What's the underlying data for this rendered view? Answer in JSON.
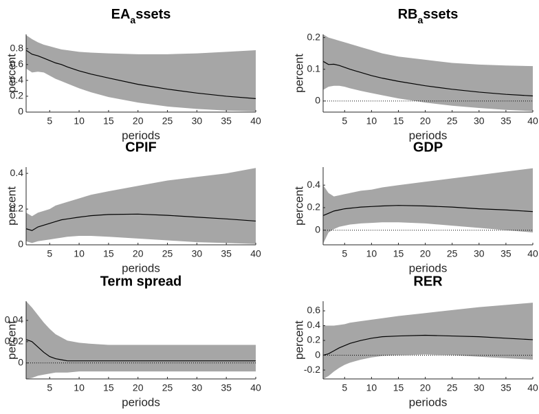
{
  "chart_data": [
    {
      "type": "band-line",
      "title": [
        "EA",
        "a",
        "ssets"
      ],
      "xlabel": "periods",
      "ylabel": "percent",
      "x": [
        1,
        2,
        3,
        4,
        5,
        6,
        7,
        8,
        10,
        12,
        15,
        20,
        25,
        30,
        35,
        40
      ],
      "values": [
        0.78,
        0.73,
        0.71,
        0.68,
        0.65,
        0.62,
        0.6,
        0.57,
        0.52,
        0.48,
        0.43,
        0.35,
        0.29,
        0.24,
        0.2,
        0.17
      ],
      "band_upper": [
        0.97,
        0.92,
        0.88,
        0.85,
        0.83,
        0.81,
        0.79,
        0.78,
        0.76,
        0.75,
        0.74,
        0.73,
        0.73,
        0.74,
        0.76,
        0.78
      ],
      "band_lower": [
        0.55,
        0.5,
        0.51,
        0.5,
        0.46,
        0.42,
        0.39,
        0.36,
        0.3,
        0.25,
        0.19,
        0.12,
        0.07,
        0.04,
        0.02,
        0.01
      ],
      "color": "#000000",
      "band_color": "#a6a6a6",
      "reference_line": 0,
      "xlim": [
        1,
        40
      ],
      "xticks": [
        5,
        10,
        15,
        20,
        25,
        30,
        35,
        40
      ],
      "ylim": [
        0,
        0.98
      ],
      "yticks": [
        0,
        0.2,
        0.4,
        0.6,
        0.8
      ]
    },
    {
      "type": "band-line",
      "title": [
        "RB",
        "a",
        "ssets"
      ],
      "xlabel": "periods",
      "ylabel": "percent",
      "x": [
        1,
        2,
        3,
        4,
        5,
        6,
        7,
        8,
        10,
        12,
        15,
        20,
        25,
        30,
        35,
        40
      ],
      "values": [
        0.125,
        0.115,
        0.116,
        0.112,
        0.106,
        0.1,
        0.095,
        0.09,
        0.08,
        0.072,
        0.062,
        0.048,
        0.037,
        0.028,
        0.021,
        0.016
      ],
      "band_upper": [
        0.21,
        0.2,
        0.195,
        0.19,
        0.185,
        0.18,
        0.175,
        0.17,
        0.16,
        0.15,
        0.14,
        0.13,
        0.12,
        0.115,
        0.112,
        0.11
      ],
      "band_lower": [
        0.035,
        0.045,
        0.048,
        0.048,
        0.045,
        0.04,
        0.036,
        0.032,
        0.025,
        0.018,
        0.008,
        -0.005,
        -0.015,
        -0.022,
        -0.028,
        -0.032
      ],
      "color": "#000000",
      "band_color": "#a6a6a6",
      "reference_line": 0,
      "xlim": [
        1,
        40
      ],
      "xticks": [
        5,
        10,
        15,
        20,
        25,
        30,
        35,
        40
      ],
      "ylim": [
        -0.035,
        0.21
      ],
      "yticks": [
        0,
        0.1,
        0.2
      ]
    },
    {
      "type": "band-line",
      "title": "CPIF",
      "xlabel": "periods",
      "ylabel": "percent",
      "x": [
        1,
        2,
        3,
        4,
        5,
        6,
        7,
        8,
        10,
        12,
        15,
        20,
        25,
        30,
        35,
        40
      ],
      "values": [
        0.09,
        0.08,
        0.1,
        0.11,
        0.12,
        0.13,
        0.14,
        0.145,
        0.155,
        0.163,
        0.17,
        0.172,
        0.165,
        0.155,
        0.145,
        0.133
      ],
      "band_upper": [
        0.18,
        0.16,
        0.18,
        0.19,
        0.2,
        0.22,
        0.23,
        0.24,
        0.26,
        0.28,
        0.3,
        0.33,
        0.36,
        0.38,
        0.4,
        0.43
      ],
      "band_lower": [
        0.02,
        0.01,
        0.02,
        0.025,
        0.03,
        0.035,
        0.04,
        0.045,
        0.05,
        0.05,
        0.045,
        0.035,
        0.025,
        0.015,
        0.01,
        0.005
      ],
      "color": "#000000",
      "band_color": "#a6a6a6",
      "reference_line": 0,
      "xlim": [
        1,
        40
      ],
      "xticks": [
        5,
        10,
        15,
        20,
        25,
        30,
        35,
        40
      ],
      "ylim": [
        0,
        0.435
      ],
      "yticks": [
        0,
        0.2,
        0.4
      ]
    },
    {
      "type": "band-line",
      "title": "GDP",
      "xlabel": "periods",
      "ylabel": "percent",
      "x": [
        1,
        2,
        3,
        4,
        5,
        6,
        7,
        8,
        10,
        12,
        15,
        20,
        25,
        30,
        35,
        40
      ],
      "values": [
        0.13,
        0.15,
        0.17,
        0.18,
        0.19,
        0.195,
        0.2,
        0.205,
        0.21,
        0.215,
        0.22,
        0.215,
        0.205,
        0.19,
        0.18,
        0.165
      ],
      "band_upper": [
        0.4,
        0.33,
        0.3,
        0.31,
        0.32,
        0.33,
        0.34,
        0.35,
        0.36,
        0.38,
        0.4,
        0.43,
        0.46,
        0.49,
        0.52,
        0.55
      ],
      "band_lower": [
        -0.12,
        -0.02,
        0.01,
        0.03,
        0.04,
        0.05,
        0.055,
        0.06,
        0.065,
        0.07,
        0.07,
        0.06,
        0.04,
        0.02,
        0,
        -0.02
      ],
      "color": "#000000",
      "band_color": "#a6a6a6",
      "reference_line": 0,
      "xlim": [
        1,
        40
      ],
      "xticks": [
        5,
        10,
        15,
        20,
        25,
        30,
        35,
        40
      ],
      "ylim": [
        -0.13,
        0.56
      ],
      "yticks": [
        0,
        0.2,
        0.4
      ]
    },
    {
      "type": "band-line",
      "title": "Term spread",
      "xlabel": "periods",
      "ylabel": "percent",
      "x": [
        1,
        2,
        3,
        4,
        5,
        6,
        7,
        8,
        10,
        12,
        15,
        20,
        25,
        30,
        35,
        40
      ],
      "values": [
        0.022,
        0.02,
        0.015,
        0.01,
        0.006,
        0.004,
        0.003,
        0.002,
        0.002,
        0.002,
        0.002,
        0.002,
        0.002,
        0.002,
        0.002,
        0.002
      ],
      "band_upper": [
        0.058,
        0.052,
        0.045,
        0.038,
        0.032,
        0.027,
        0.024,
        0.021,
        0.019,
        0.018,
        0.017,
        0.017,
        0.017,
        0.017,
        0.017,
        0.017
      ],
      "band_lower": [
        -0.015,
        -0.014,
        -0.012,
        -0.011,
        -0.01,
        -0.009,
        -0.009,
        -0.009,
        -0.008,
        -0.008,
        -0.008,
        -0.008,
        -0.008,
        -0.008,
        -0.008,
        -0.008
      ],
      "color": "#000000",
      "band_color": "#a6a6a6",
      "reference_line": 0,
      "xlim": [
        1,
        40
      ],
      "xticks": [
        5,
        10,
        15,
        20,
        25,
        30,
        35,
        40
      ],
      "ylim": [
        -0.015,
        0.058
      ],
      "yticks": [
        0,
        0.02,
        0.04
      ]
    },
    {
      "type": "band-line",
      "title": "RER",
      "xlabel": "periods",
      "ylabel": "percent",
      "x": [
        1,
        2,
        3,
        4,
        5,
        6,
        7,
        8,
        10,
        12,
        15,
        20,
        25,
        30,
        35,
        40
      ],
      "values": [
        0,
        0.02,
        0.06,
        0.1,
        0.13,
        0.16,
        0.18,
        0.2,
        0.23,
        0.25,
        0.26,
        0.27,
        0.26,
        0.25,
        0.23,
        0.21
      ],
      "band_upper": [
        0.4,
        0.4,
        0.4,
        0.41,
        0.42,
        0.44,
        0.45,
        0.46,
        0.48,
        0.5,
        0.53,
        0.57,
        0.61,
        0.65,
        0.68,
        0.71
      ],
      "band_lower": [
        -0.32,
        -0.28,
        -0.22,
        -0.17,
        -0.13,
        -0.1,
        -0.08,
        -0.06,
        -0.03,
        -0.01,
        0,
        0.01,
        0,
        -0.02,
        -0.04,
        -0.06
      ],
      "color": "#000000",
      "band_color": "#a6a6a6",
      "reference_line": 0,
      "xlim": [
        1,
        40
      ],
      "xticks": [
        5,
        10,
        15,
        20,
        25,
        30,
        35,
        40
      ],
      "ylim": [
        -0.32,
        0.73
      ],
      "yticks": [
        -0.2,
        0,
        0.2,
        0.4,
        0.6
      ]
    }
  ]
}
